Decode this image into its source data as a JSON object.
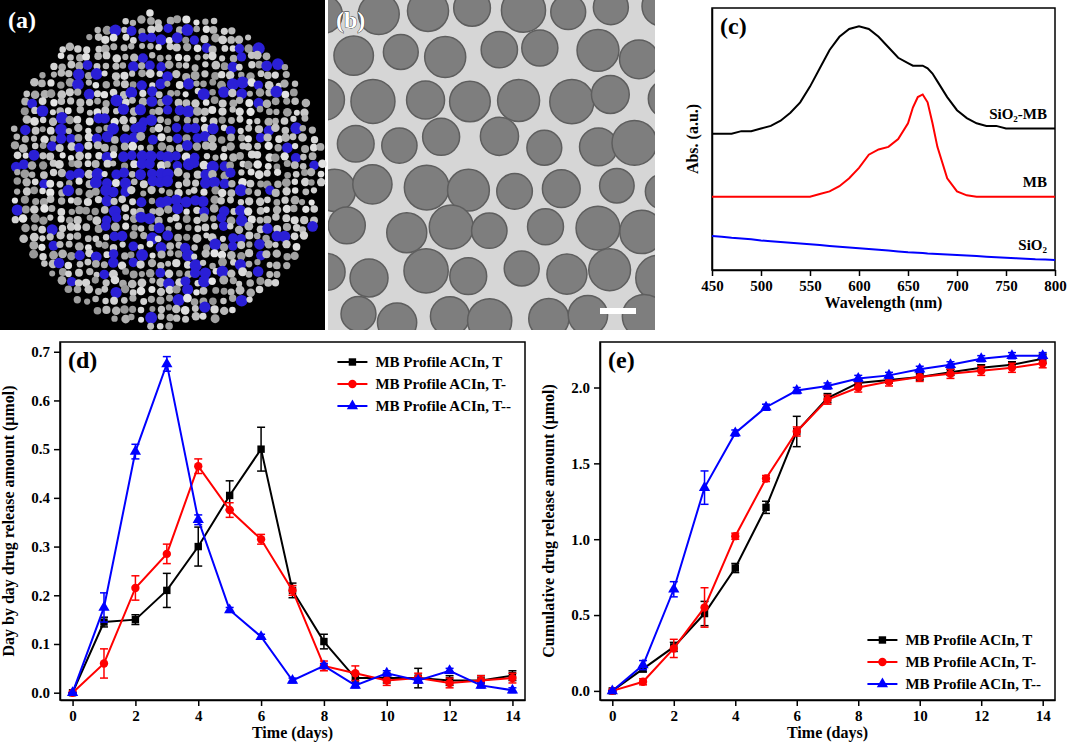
{
  "images": [
    {
      "panel": "(a)"
    },
    {
      "panel": "(b)"
    }
  ],
  "chart_data": [
    {
      "type": "line",
      "panel": "(c)",
      "xlabel": "Wavelength (nm)",
      "ylabel": "Abs. (a.u.)",
      "x": [
        450,
        460,
        470,
        480,
        490,
        500,
        510,
        520,
        530,
        540,
        550,
        560,
        570,
        580,
        590,
        600,
        610,
        620,
        630,
        640,
        650,
        655,
        660,
        665,
        670,
        675,
        680,
        690,
        700,
        710,
        720,
        730,
        740,
        750,
        760,
        770,
        780,
        790,
        800
      ],
      "xlim": [
        450,
        800
      ],
      "xticks": [
        450,
        500,
        550,
        600,
        650,
        700,
        750,
        800
      ],
      "ylim": [
        0,
        1
      ],
      "tick_labels": "x",
      "legend": "inline",
      "series": [
        {
          "name": "SiO₂-MB",
          "color": "#000000",
          "line_style": "solid",
          "values": [
            0.52,
            0.52,
            0.52,
            0.53,
            0.53,
            0.54,
            0.55,
            0.57,
            0.6,
            0.64,
            0.7,
            0.77,
            0.84,
            0.89,
            0.92,
            0.93,
            0.92,
            0.89,
            0.85,
            0.81,
            0.79,
            0.78,
            0.78,
            0.78,
            0.77,
            0.75,
            0.72,
            0.66,
            0.61,
            0.58,
            0.56,
            0.55,
            0.55,
            0.54,
            0.54,
            0.54,
            0.54,
            0.54,
            0.54
          ]
        },
        {
          "name": "MB",
          "color": "#ff0000",
          "line_style": "solid",
          "values": [
            0.28,
            0.28,
            0.28,
            0.28,
            0.28,
            0.28,
            0.28,
            0.28,
            0.28,
            0.28,
            0.28,
            0.29,
            0.3,
            0.32,
            0.35,
            0.39,
            0.44,
            0.46,
            0.47,
            0.5,
            0.56,
            0.62,
            0.66,
            0.67,
            0.64,
            0.56,
            0.47,
            0.35,
            0.3,
            0.285,
            0.28,
            0.28,
            0.28,
            0.28,
            0.28,
            0.28,
            0.28,
            0.28,
            0.28
          ]
        },
        {
          "name": "SiO₂",
          "color": "#0000ff",
          "line_style": "solid",
          "values": [
            0.13,
            0.127,
            0.123,
            0.12,
            0.117,
            0.113,
            0.11,
            0.107,
            0.104,
            0.101,
            0.098,
            0.095,
            0.092,
            0.089,
            0.086,
            0.083,
            0.08,
            0.077,
            0.074,
            0.071,
            0.068,
            0.067,
            0.066,
            0.065,
            0.063,
            0.062,
            0.061,
            0.059,
            0.057,
            0.055,
            0.053,
            0.051,
            0.049,
            0.047,
            0.045,
            0.043,
            0.041,
            0.04,
            0.038
          ]
        }
      ]
    },
    {
      "type": "line",
      "panel": "(d)",
      "xlabel": "Time (days)",
      "ylabel": "Day by day drug release amount (μmol)",
      "x": [
        0,
        1,
        2,
        3,
        4,
        5,
        6,
        7,
        8,
        9,
        10,
        11,
        12,
        13,
        14
      ],
      "xlim": [
        -0.4,
        14.4
      ],
      "xticks": [
        0,
        2,
        4,
        6,
        8,
        10,
        12,
        14
      ],
      "ylim": [
        -0.015,
        0.72
      ],
      "yticks": [
        {
          "value": 0,
          "label": "0.0"
        },
        0.1,
        0.2,
        0.3,
        0.4,
        0.5,
        0.6,
        0.7
      ],
      "legend": "top-right",
      "series": [
        {
          "name": "MB Profile ACIn, T",
          "color": "#000000",
          "marker": "square",
          "line_style": "solid",
          "values": [
            0,
            0.145,
            0.15,
            0.21,
            0.3,
            0.405,
            0.5,
            0.21,
            0.105,
            0.03,
            0.03,
            0.03,
            0.025,
            0.025,
            0.035
          ],
          "errors": [
            0,
            0.01,
            0.01,
            0.035,
            0.04,
            0.03,
            0.045,
            0.015,
            0.015,
            0.01,
            0.01,
            0.02,
            0.01,
            0.01,
            0.01
          ]
        },
        {
          "name": "MB Profile ACIn, T-",
          "color": "#ff0000",
          "marker": "circle",
          "line_style": "solid",
          "values": [
            0,
            0.06,
            0.215,
            0.285,
            0.465,
            0.375,
            0.315,
            0.21,
            0.055,
            0.04,
            0.025,
            0.03,
            0.02,
            0.025,
            0.03
          ],
          "errors": [
            0,
            0.03,
            0.025,
            0.02,
            0.015,
            0.015,
            0.01,
            0.01,
            0.01,
            0.015,
            0.01,
            0.01,
            0.01,
            0.01,
            0.01
          ]
        },
        {
          "name": "MB Profile ACIn, T--",
          "color": "#0000ff",
          "marker": "triangle",
          "line_style": "solid",
          "values": [
            0,
            0.175,
            0.495,
            0.675,
            0.355,
            0.17,
            0.115,
            0.025,
            0.055,
            0.015,
            0.04,
            0.025,
            0.045,
            0.015,
            0.005
          ],
          "errors": [
            0,
            0.03,
            0.015,
            0.015,
            0.01,
            0.005,
            0.005,
            0.005,
            0.005,
            0.005,
            0.005,
            0.005,
            0.005,
            0.005,
            0.005
          ]
        }
      ]
    },
    {
      "type": "line",
      "panel": "(e)",
      "xlabel": "Time (days)",
      "ylabel": "Cumulative drug release amount (μmol)",
      "x": [
        0,
        1,
        2,
        3,
        4,
        5,
        6,
        7,
        8,
        9,
        10,
        11,
        12,
        13,
        14
      ],
      "xlim": [
        -0.4,
        14.4
      ],
      "xticks": [
        0,
        2,
        4,
        6,
        8,
        10,
        12,
        14
      ],
      "ylim": [
        -0.06,
        2.3
      ],
      "yticks": [
        {
          "value": 0,
          "label": "0.0"
        },
        0.5,
        {
          "value": 1,
          "label": "1.0"
        },
        1.5,
        {
          "value": 2,
          "label": "2.0"
        }
      ],
      "legend": "bottom-right",
      "series": [
        {
          "name": "MB Profile ACIn, T",
          "color": "#000000",
          "marker": "square",
          "line_style": "solid",
          "values": [
            0,
            0.145,
            0.29,
            0.51,
            0.81,
            1.21,
            1.71,
            1.93,
            2.03,
            2.05,
            2.07,
            2.1,
            2.13,
            2.15,
            2.19
          ],
          "errors": [
            0,
            0.02,
            0.03,
            0.08,
            0.03,
            0.04,
            0.1,
            0.03,
            0.02,
            0.02,
            0.02,
            0.02,
            0.02,
            0.02,
            0.03
          ]
        },
        {
          "name": "MB Profile ACIn, T-",
          "color": "#ff0000",
          "marker": "circle",
          "line_style": "solid",
          "values": [
            0,
            0.06,
            0.28,
            0.55,
            1.02,
            1.4,
            1.71,
            1.92,
            2.0,
            2.04,
            2.07,
            2.09,
            2.11,
            2.13,
            2.16
          ],
          "errors": [
            0,
            0.02,
            0.06,
            0.13,
            0.02,
            0.02,
            0.03,
            0.03,
            0.03,
            0.03,
            0.03,
            0.03,
            0.03,
            0.03,
            0.03
          ]
        },
        {
          "name": "MB Profile ACIn, T--",
          "color": "#0000ff",
          "marker": "triangle",
          "line_style": "solid",
          "values": [
            0,
            0.17,
            0.67,
            1.34,
            1.7,
            1.87,
            1.98,
            2.01,
            2.06,
            2.08,
            2.12,
            2.15,
            2.19,
            2.21,
            2.21
          ],
          "errors": [
            0,
            0.03,
            0.05,
            0.11,
            0.02,
            0.02,
            0.02,
            0.02,
            0.02,
            0.02,
            0.02,
            0.02,
            0.02,
            0.02,
            0.02
          ]
        }
      ]
    }
  ]
}
